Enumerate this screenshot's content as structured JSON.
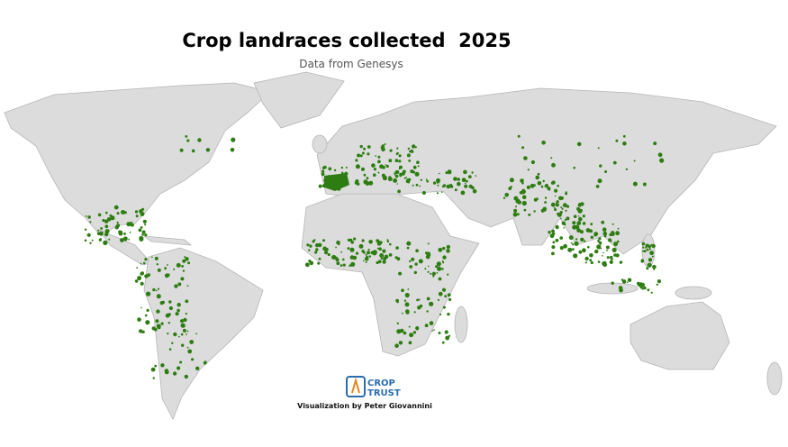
{
  "title": "Crop landraces collected  2025",
  "subtitle": "Data from Genesys",
  "logo": {
    "line1": "CROP",
    "line2": "TRUST"
  },
  "credit": "Visualization by Peter Giovannini"
}
